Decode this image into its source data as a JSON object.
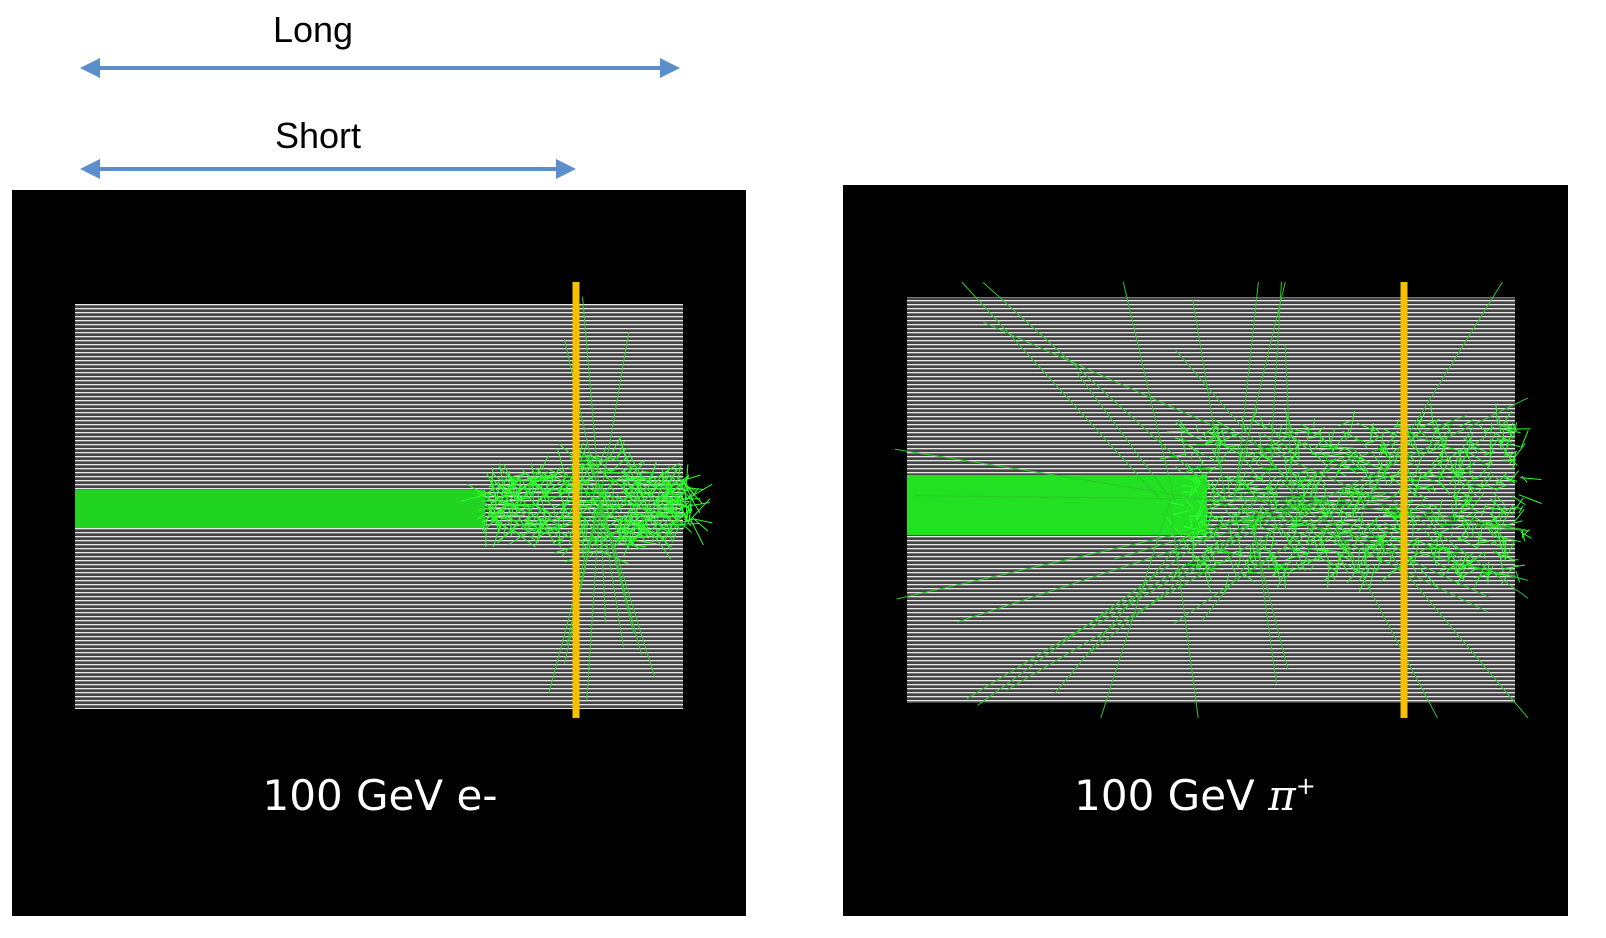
{
  "labels": {
    "long": "Long",
    "short": "Short"
  },
  "panels": [
    {
      "caption": "100 GeV e-"
    },
    {
      "caption_text": "100 GeV ",
      "caption_symbol": "π",
      "caption_sup": "+"
    }
  ]
}
